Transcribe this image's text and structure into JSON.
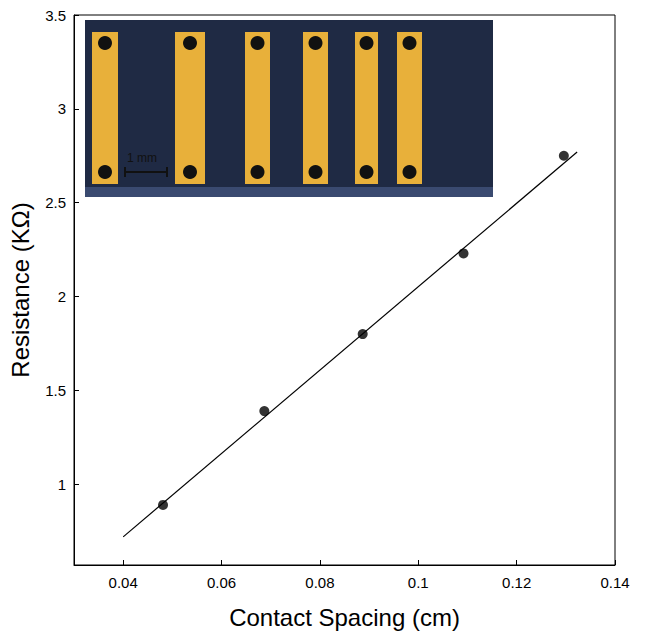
{
  "chart_data": {
    "type": "scatter",
    "x_label": "Contact Spacing (cm)",
    "y_label": "Resistance (KΩ)",
    "annotations": [
      "1 mm"
    ],
    "series": [
      {
        "type": "scatter",
        "marker": "circle",
        "color": "#000000",
        "x": [
          0.0481,
          0.0687,
          0.0887,
          0.1092,
          0.1296
        ],
        "values": [
          0.89,
          1.39,
          1.8,
          2.23,
          2.75
        ]
      },
      {
        "type": "line",
        "line_style": "solid",
        "color": "#000000",
        "x": [
          0.04,
          0.1323
        ],
        "values": [
          0.72,
          2.77
        ]
      }
    ],
    "xlim": [
      0.03,
      0.14
    ],
    "xticks": [
      0.04,
      0.06,
      0.08,
      0.1,
      0.12,
      0.14
    ],
    "ylim": [
      0.57,
      3.5
    ],
    "yticks": [
      1,
      1.5,
      2,
      2.5,
      3,
      3.5
    ],
    "grid": false
  }
}
